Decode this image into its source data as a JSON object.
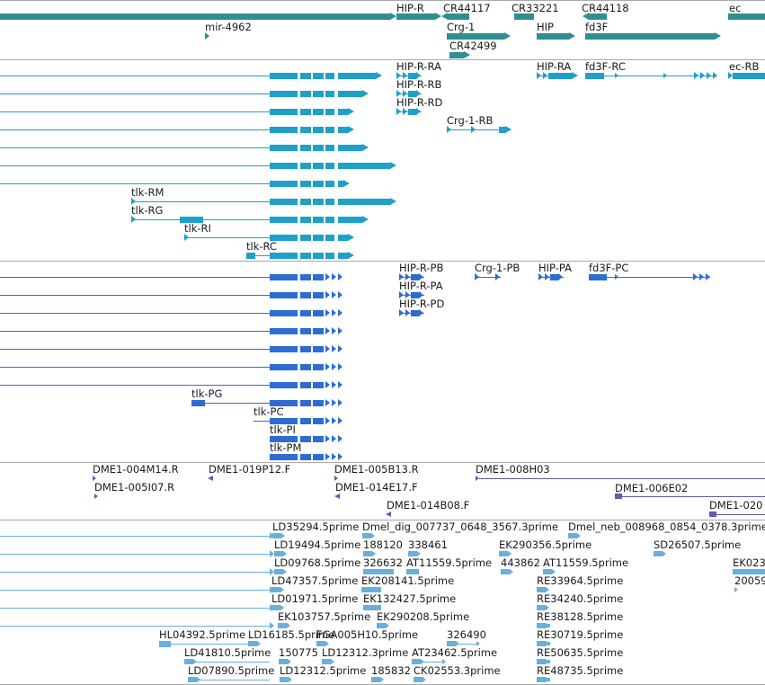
{
  "colors": {
    "gene": "#2f8f90",
    "transcript_a": "#1fa0c8",
    "transcript_b": "#2e6cd4",
    "clone": "#6b55b0",
    "est": "#6aaedc",
    "separator": "#a9a9a9"
  },
  "tracks": {
    "genes": {
      "labels": [
        "HIP-R",
        "CR44117",
        "CR33221",
        "CR44118",
        "ec",
        "mir-4962",
        "Crg-1",
        "HIP",
        "fd3F",
        "CR42499"
      ]
    },
    "transcripts_a": {
      "labels": [
        "HIP-R-RA",
        "HIP-RA",
        "fd3F-RC",
        "ec-RB",
        "HIP-R-RB",
        "HIP-R-RD",
        "Crg-1-RB",
        "tlk-RM",
        "tlk-RG",
        "tlk-RI",
        "tlk-RC"
      ]
    },
    "transcripts_b": {
      "labels": [
        "HIP-R-PB",
        "Crg-1-PB",
        "HIP-PA",
        "fd3F-PC",
        "HIP-R-PA",
        "HIP-R-PD",
        "tlk-PG",
        "tlk-PC",
        "tlk-PI",
        "tlk-PM"
      ]
    },
    "clones": {
      "labels": [
        "DME1-004M14.R",
        "DME1-019P12.F",
        "DME1-005B13.R",
        "DME1-008H03",
        "DME1-005I07.R",
        "DME1-014E17.F",
        "DME1-006E02",
        "DME1-014B08.F",
        "DME1-020"
      ]
    },
    "ests": {
      "labels": [
        "LD35294.5prime",
        "Dmel_dig_007737_0648_3567.3prime",
        "Dmel_neb_008968_0854_0378.3prime",
        "LD19494.5prime",
        "188120",
        "338461",
        "EK290356.5prime",
        "SD26507.5prime",
        "LD09768.5prime",
        "326632",
        "AT11559.5prime",
        "443862",
        "AT11559.5prime",
        "EK023",
        "LD47357.5prime",
        "EK208141.5prime",
        "RE33964.5prime",
        "20059",
        "LD01971.5prime",
        "EK132427.5prime",
        "RE34240.5prime",
        "EK103757.5prime",
        "EK290208.5prime",
        "RE38128.5prime",
        "HL04392.5prime",
        "LD16185.5prime",
        "FGA005H10.5prime",
        "326490",
        "RE30719.5prime",
        "LD41810.5prime",
        "150775",
        "LD12312.3prime",
        "AT23462.5prime",
        "RE50635.5prime",
        "LD07890.5prime",
        "LD12312.5prime",
        "185832",
        "CK02553.3prime",
        "RE48735.5prime"
      ]
    }
  }
}
